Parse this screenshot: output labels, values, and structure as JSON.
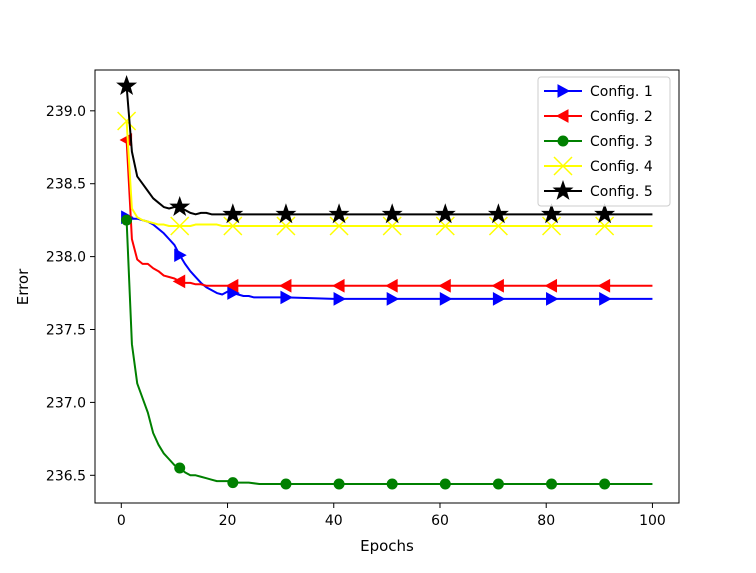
{
  "chart_data": {
    "type": "line",
    "title": "",
    "xlabel": "Epochs",
    "ylabel": "Error",
    "xlim": [
      -4.95,
      105.0
    ],
    "ylim": [
      236.31,
      239.28
    ],
    "xticks": [
      0,
      20,
      40,
      60,
      80,
      100
    ],
    "yticks": [
      236.5,
      237.0,
      237.5,
      238.0,
      238.5,
      239.0
    ],
    "xtick_labels": [
      "0",
      "20",
      "40",
      "60",
      "80",
      "100"
    ],
    "ytick_labels": [
      "236.5",
      "237.0",
      "237.5",
      "238.0",
      "238.5",
      "239.0"
    ],
    "grid": false,
    "legend_position": "upper right",
    "markers_at_x": [
      1,
      11,
      21,
      31,
      41,
      51,
      61,
      71,
      81,
      91
    ],
    "series": [
      {
        "name": "Config. 1",
        "color": "#0000ff",
        "marker": "triangle-right",
        "x": [
          1,
          2,
          3,
          4,
          5,
          6,
          7,
          8,
          9,
          10,
          11,
          12,
          13,
          14,
          15,
          16,
          17,
          18,
          19,
          20,
          21,
          22,
          23,
          24,
          25,
          26,
          27,
          28,
          29,
          30,
          31,
          40,
          50,
          60,
          70,
          80,
          90,
          100
        ],
        "y": [
          238.27,
          238.26,
          238.26,
          238.25,
          238.24,
          238.22,
          238.19,
          238.16,
          238.12,
          238.08,
          238.01,
          237.95,
          237.9,
          237.86,
          237.82,
          237.79,
          237.77,
          237.75,
          237.74,
          237.76,
          237.75,
          237.74,
          237.73,
          237.73,
          237.72,
          237.72,
          237.72,
          237.72,
          237.72,
          237.72,
          237.72,
          237.71,
          237.71,
          237.71,
          237.71,
          237.71,
          237.71,
          237.71
        ]
      },
      {
        "name": "Config. 2",
        "color": "#ff0000",
        "marker": "triangle-left",
        "x": [
          1,
          2,
          3,
          4,
          5,
          6,
          7,
          8,
          9,
          10,
          11,
          12,
          13,
          14,
          15,
          16,
          17,
          18,
          19,
          20,
          21,
          25,
          30,
          40,
          50,
          60,
          70,
          80,
          90,
          100
        ],
        "y": [
          238.8,
          238.12,
          237.98,
          237.95,
          237.95,
          237.92,
          237.9,
          237.87,
          237.86,
          237.85,
          237.83,
          237.82,
          237.82,
          237.81,
          237.81,
          237.8,
          237.8,
          237.8,
          237.8,
          237.8,
          237.8,
          237.8,
          237.8,
          237.8,
          237.8,
          237.8,
          237.8,
          237.8,
          237.8,
          237.8
        ]
      },
      {
        "name": "Config. 3",
        "color": "#008000",
        "marker": "circle",
        "x": [
          1,
          2,
          3,
          4,
          5,
          6,
          7,
          8,
          9,
          10,
          11,
          12,
          13,
          14,
          15,
          16,
          17,
          18,
          19,
          20,
          21,
          22,
          24,
          26,
          28,
          30,
          31,
          40,
          50,
          60,
          70,
          80,
          90,
          100
        ],
        "y": [
          238.25,
          237.4,
          237.13,
          237.03,
          236.93,
          236.79,
          236.71,
          236.65,
          236.61,
          236.57,
          236.55,
          236.52,
          236.5,
          236.5,
          236.49,
          236.48,
          236.47,
          236.46,
          236.46,
          236.46,
          236.45,
          236.45,
          236.45,
          236.44,
          236.44,
          236.44,
          236.44,
          236.44,
          236.44,
          236.44,
          236.44,
          236.44,
          236.44,
          236.44
        ]
      },
      {
        "name": "Config. 4",
        "color": "#ffff00",
        "marker": "x",
        "x": [
          1,
          2,
          3,
          4,
          5,
          6,
          7,
          8,
          9,
          10,
          11,
          12,
          13,
          14,
          15,
          16,
          17,
          18,
          19,
          20,
          21,
          25,
          30,
          40,
          50,
          60,
          70,
          80,
          90,
          100
        ],
        "y": [
          238.93,
          238.33,
          238.27,
          238.25,
          238.24,
          238.23,
          238.22,
          238.22,
          238.21,
          238.21,
          238.21,
          238.21,
          238.21,
          238.22,
          238.22,
          238.22,
          238.22,
          238.22,
          238.21,
          238.21,
          238.21,
          238.21,
          238.21,
          238.21,
          238.21,
          238.21,
          238.21,
          238.21,
          238.21,
          238.21
        ]
      },
      {
        "name": "Config. 5",
        "color": "#000000",
        "marker": "star",
        "x": [
          1,
          2,
          3,
          4,
          5,
          6,
          7,
          8,
          9,
          10,
          11,
          12,
          13,
          14,
          15,
          16,
          17,
          18,
          19,
          20,
          21,
          25,
          30,
          40,
          50,
          60,
          70,
          80,
          90,
          100
        ],
        "y": [
          239.17,
          238.72,
          238.55,
          238.5,
          238.45,
          238.4,
          238.37,
          238.34,
          238.33,
          238.34,
          238.34,
          238.32,
          238.3,
          238.29,
          238.3,
          238.3,
          238.29,
          238.29,
          238.29,
          238.29,
          238.29,
          238.29,
          238.29,
          238.29,
          238.29,
          238.29,
          238.29,
          238.29,
          238.29,
          238.29
        ]
      }
    ]
  }
}
